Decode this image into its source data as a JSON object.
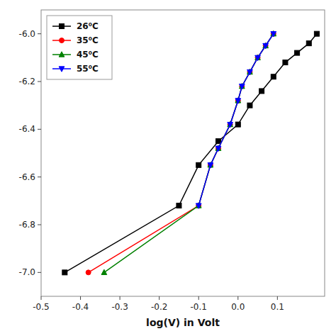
{
  "chart_data": {
    "type": "line",
    "xlabel": "log(V) in Volt",
    "series": [
      {
        "name": "26⁰C",
        "color": "black",
        "marker": "square",
        "x": [
          -0.44,
          -0.15,
          -0.1,
          -0.05,
          0.0,
          0.03,
          0.06,
          0.09,
          0.12,
          0.15,
          0.18,
          0.2
        ],
        "values": [
          -7.0,
          -6.72,
          -6.55,
          -6.45,
          -6.38,
          -6.3,
          -6.24,
          -6.18,
          -6.12,
          -6.08,
          -6.04,
          -6.0
        ]
      },
      {
        "name": "35⁰C",
        "color": "red",
        "marker": "circle",
        "x": [
          -0.38,
          -0.1,
          -0.07,
          -0.05,
          -0.02,
          0.0,
          0.01,
          0.03,
          0.05,
          0.07,
          0.09
        ],
        "values": [
          -7.0,
          -6.72,
          -6.55,
          -6.48,
          -6.38,
          -6.28,
          -6.22,
          -6.16,
          -6.1,
          -6.05,
          -6.0
        ]
      },
      {
        "name": "45⁰C",
        "color": "green",
        "marker": "triangle-up",
        "x": [
          -0.34,
          -0.1,
          -0.07,
          -0.05,
          -0.02,
          0.0,
          0.01,
          0.03,
          0.05,
          0.07,
          0.09
        ],
        "values": [
          -7.0,
          -6.72,
          -6.55,
          -6.48,
          -6.38,
          -6.28,
          -6.22,
          -6.16,
          -6.1,
          -6.05,
          -6.0
        ]
      },
      {
        "name": "55⁰C",
        "color": "blue",
        "marker": "triangle-down",
        "x": [
          -0.1,
          -0.07,
          -0.05,
          -0.02,
          0.0,
          0.01,
          0.03,
          0.05,
          0.07,
          0.09
        ],
        "values": [
          -6.72,
          -6.55,
          -6.48,
          -6.38,
          -6.28,
          -6.22,
          -6.16,
          -6.1,
          -6.05,
          -6.0
        ]
      }
    ],
    "xlim": [
      -0.5,
      0.22
    ],
    "ylim": [
      -7.1,
      -5.9
    ],
    "xticks": [
      -0.5,
      -0.4,
      -0.3,
      -0.2,
      -0.1,
      {
        "value": 0.0,
        "label": "0.0"
      },
      0.1
    ],
    "yticks": [
      {
        "value": -7.0,
        "label": "-7.0"
      },
      -6.8,
      -6.6,
      -6.4,
      -6.2,
      {
        "value": -6.0,
        "label": "-6.0"
      }
    ],
    "legend": "upper left",
    "grid": false
  }
}
